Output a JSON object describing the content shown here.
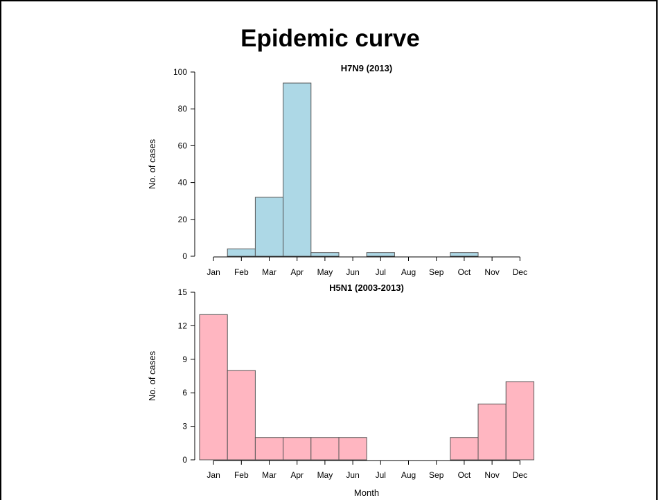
{
  "slide": {
    "title": "Epidemic curve"
  },
  "chart_data": [
    {
      "type": "bar",
      "title": "H7N9 (2013)",
      "xlabel": "",
      "ylabel": "No. of cases",
      "categories": [
        "Jan",
        "Feb",
        "Mar",
        "Apr",
        "May",
        "Jun",
        "Jul",
        "Aug",
        "Sep",
        "Oct",
        "Nov",
        "Dec"
      ],
      "values": [
        0,
        4,
        32,
        94,
        2,
        0,
        2,
        0,
        0,
        2,
        0,
        0
      ],
      "ylim": [
        0,
        100
      ],
      "yticks": [
        0,
        20,
        40,
        60,
        80,
        100
      ],
      "color": "#add8e6",
      "grid": false
    },
    {
      "type": "bar",
      "title": "H5N1 (2003-2013)",
      "xlabel": "Month",
      "ylabel": "No. of cases",
      "categories": [
        "Jan",
        "Feb",
        "Mar",
        "Apr",
        "May",
        "Jun",
        "Jul",
        "Aug",
        "Sep",
        "Oct",
        "Nov",
        "Dec"
      ],
      "values": [
        13,
        8,
        2,
        2,
        2,
        2,
        0,
        0,
        0,
        2,
        5,
        7
      ],
      "ylim": [
        0,
        15
      ],
      "yticks": [
        0,
        3,
        6,
        9,
        12,
        15
      ],
      "color": "#ffb6c1",
      "grid": false
    }
  ]
}
